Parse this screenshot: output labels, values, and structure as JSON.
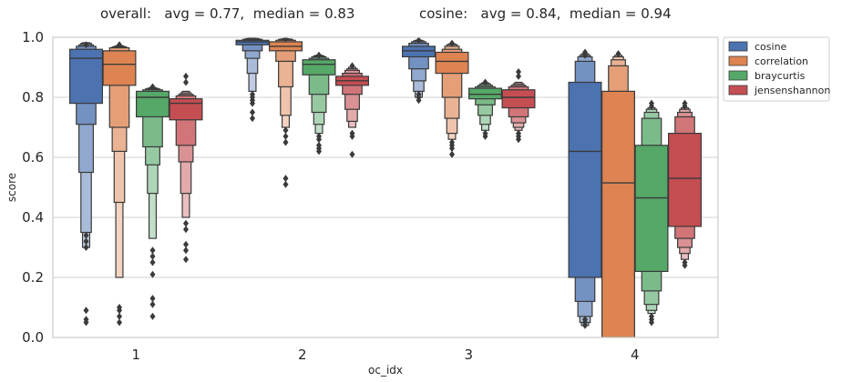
{
  "chart_data": {
    "type": "boxen",
    "title_left": "overall:   avg = 0.77,  median = 0.83",
    "title_right": "cosine:   avg = 0.84,  median = 0.94",
    "xlabel": "oc_idx",
    "ylabel": "score",
    "ylim": [
      0,
      1.0
    ],
    "yticks": [
      0.0,
      0.2,
      0.4,
      0.6,
      0.8,
      1.0
    ],
    "ytick_labels": [
      "0.0",
      "0.2",
      "0.4",
      "0.6",
      "0.8",
      "1.0"
    ],
    "categories": [
      "1",
      "2",
      "3",
      "4"
    ],
    "grid": "horizontal",
    "legend_position": "outside-right",
    "series": [
      {
        "name": "cosine",
        "color": "#4c72b0",
        "groups": [
          {
            "median": 0.93,
            "levels": [
              [
                0.78,
                0.96
              ],
              [
                0.71,
                0.97
              ],
              [
                0.55,
                0.975
              ],
              [
                0.35,
                0.98
              ],
              [
                0.3,
                0.982
              ]
            ],
            "outliers": [
              0.3,
              0.32,
              0.34,
              0.09,
              0.06,
              0.05,
              0.975
            ]
          },
          {
            "median": 0.985,
            "levels": [
              [
                0.975,
                0.99
              ],
              [
                0.955,
                0.993
              ],
              [
                0.93,
                0.995
              ],
              [
                0.88,
                0.996
              ],
              [
                0.82,
                0.997
              ]
            ],
            "outliers": [
              0.81,
              0.8,
              0.79,
              0.78,
              0.75,
              0.73
            ]
          },
          {
            "median": 0.955,
            "levels": [
              [
                0.935,
                0.97
              ],
              [
                0.895,
                0.98
              ],
              [
                0.855,
                0.985
              ],
              [
                0.82,
                0.988
              ],
              [
                0.8,
                0.99
              ]
            ],
            "outliers": [
              0.79,
              0.8,
              0.81,
              0.99
            ]
          },
          {
            "median": 0.62,
            "levels": [
              [
                0.2,
                0.85
              ],
              [
                0.12,
                0.92
              ],
              [
                0.07,
                0.935
              ],
              [
                0.05,
                0.94
              ],
              [
                0.04,
                0.945
              ]
            ],
            "outliers": [
              0.04,
              0.05,
              0.06,
              0.95,
              0.94
            ]
          }
        ]
      },
      {
        "name": "correlation",
        "color": "#dd8452",
        "groups": [
          {
            "median": 0.91,
            "levels": [
              [
                0.84,
                0.955
              ],
              [
                0.7,
                0.965
              ],
              [
                0.62,
                0.968
              ],
              [
                0.45,
                0.97
              ],
              [
                0.2,
                0.972
              ]
            ],
            "outliers": [
              0.1,
              0.09,
              0.07,
              0.05,
              0.975
            ]
          },
          {
            "median": 0.97,
            "levels": [
              [
                0.955,
                0.985
              ],
              [
                0.92,
                0.99
              ],
              [
                0.835,
                0.993
              ],
              [
                0.74,
                0.994
              ],
              [
                0.7,
                0.995
              ]
            ],
            "outliers": [
              0.69,
              0.67,
              0.65,
              0.53,
              0.51,
              0.995
            ]
          },
          {
            "median": 0.92,
            "levels": [
              [
                0.88,
                0.95
              ],
              [
                0.8,
                0.96
              ],
              [
                0.73,
                0.97
              ],
              [
                0.68,
                0.975
              ],
              [
                0.66,
                0.978
              ]
            ],
            "outliers": [
              0.65,
              0.64,
              0.63,
              0.61,
              0.98
            ]
          },
          {
            "median": 0.515,
            "levels": [
              [
                0.0,
                0.82
              ],
              [
                0.0,
                0.905
              ],
              [
                0.0,
                0.925
              ],
              [
                0.0,
                0.935
              ],
              [
                0.0,
                0.94
              ]
            ],
            "outliers": [
              0.945
            ]
          }
        ]
      },
      {
        "name": "braycurtis",
        "color": "#55a868",
        "groups": [
          {
            "median": 0.8,
            "levels": [
              [
                0.735,
                0.82
              ],
              [
                0.635,
                0.825
              ],
              [
                0.575,
                0.828
              ],
              [
                0.48,
                0.83
              ],
              [
                0.33,
                0.832
              ]
            ],
            "outliers": [
              0.29,
              0.27,
              0.25,
              0.21,
              0.13,
              0.11,
              0.07,
              0.835
            ]
          },
          {
            "median": 0.91,
            "levels": [
              [
                0.875,
                0.925
              ],
              [
                0.81,
                0.93
              ],
              [
                0.75,
                0.935
              ],
              [
                0.71,
                0.938
              ],
              [
                0.68,
                0.94
              ]
            ],
            "outliers": [
              0.67,
              0.66,
              0.64,
              0.63,
              0.62,
              0.94
            ]
          },
          {
            "median": 0.81,
            "levels": [
              [
                0.795,
                0.83
              ],
              [
                0.775,
                0.835
              ],
              [
                0.74,
                0.84
              ],
              [
                0.71,
                0.845
              ],
              [
                0.69,
                0.848
              ]
            ],
            "outliers": [
              0.68,
              0.67,
              0.85
            ]
          },
          {
            "median": 0.465,
            "levels": [
              [
                0.22,
                0.64
              ],
              [
                0.155,
                0.73
              ],
              [
                0.11,
                0.75
              ],
              [
                0.09,
                0.76
              ],
              [
                0.08,
                0.765
              ]
            ],
            "outliers": [
              0.07,
              0.06,
              0.05,
              0.77,
              0.78
            ]
          }
        ]
      },
      {
        "name": "jensenshannon",
        "color": "#c44e52",
        "groups": [
          {
            "median": 0.78,
            "levels": [
              [
                0.725,
                0.795
              ],
              [
                0.64,
                0.805
              ],
              [
                0.585,
                0.81
              ],
              [
                0.48,
                0.815
              ],
              [
                0.4,
                0.82
              ]
            ],
            "outliers": [
              0.38,
              0.36,
              0.31,
              0.29,
              0.26,
              0.85,
              0.87
            ]
          },
          {
            "median": 0.855,
            "levels": [
              [
                0.84,
                0.87
              ],
              [
                0.81,
                0.88
              ],
              [
                0.76,
                0.89
              ],
              [
                0.72,
                0.895
              ],
              [
                0.7,
                0.9
              ]
            ],
            "outliers": [
              0.68,
              0.67,
              0.61,
              0.905
            ]
          },
          {
            "median": 0.8,
            "levels": [
              [
                0.765,
                0.825
              ],
              [
                0.735,
                0.835
              ],
              [
                0.715,
                0.84
              ],
              [
                0.7,
                0.845
              ],
              [
                0.69,
                0.85
              ]
            ],
            "outliers": [
              0.68,
              0.67,
              0.66,
              0.87,
              0.885
            ]
          },
          {
            "median": 0.53,
            "levels": [
              [
                0.37,
                0.68
              ],
              [
                0.33,
                0.735
              ],
              [
                0.3,
                0.75
              ],
              [
                0.28,
                0.76
              ],
              [
                0.26,
                0.765
              ]
            ],
            "outliers": [
              0.25,
              0.24,
              0.77,
              0.78
            ]
          }
        ]
      }
    ]
  }
}
